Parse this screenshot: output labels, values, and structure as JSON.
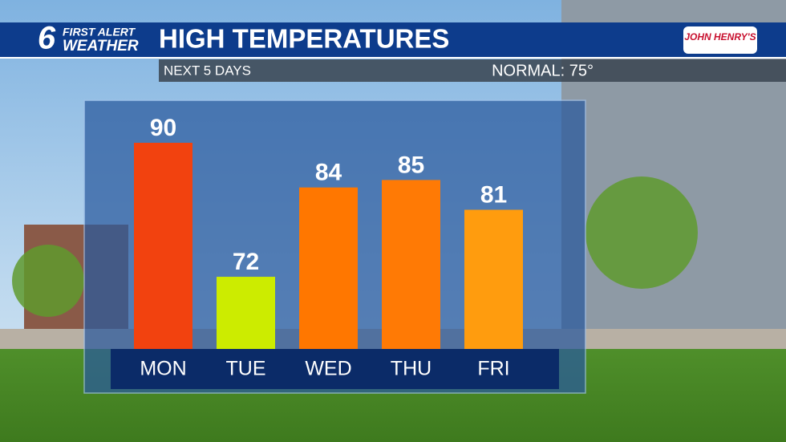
{
  "chart_data": {
    "type": "bar",
    "brand_number": "6",
    "brand_line1": "FIRST ALERT",
    "brand_line2": "WEATHER",
    "title": "HIGH TEMPERATURES",
    "sponsor": "JOHN HENRY'S",
    "subtitle": "NEXT 5 DAYS",
    "normal": "NORMAL: 75°",
    "categories": [
      "MON",
      "TUE",
      "WED",
      "THU",
      "FRI"
    ],
    "values": [
      90,
      72,
      84,
      85,
      81
    ],
    "colors": [
      "#f2420f",
      "#ccec00",
      "#ff7700",
      "#ff7a05",
      "#ff9c0e"
    ]
  }
}
